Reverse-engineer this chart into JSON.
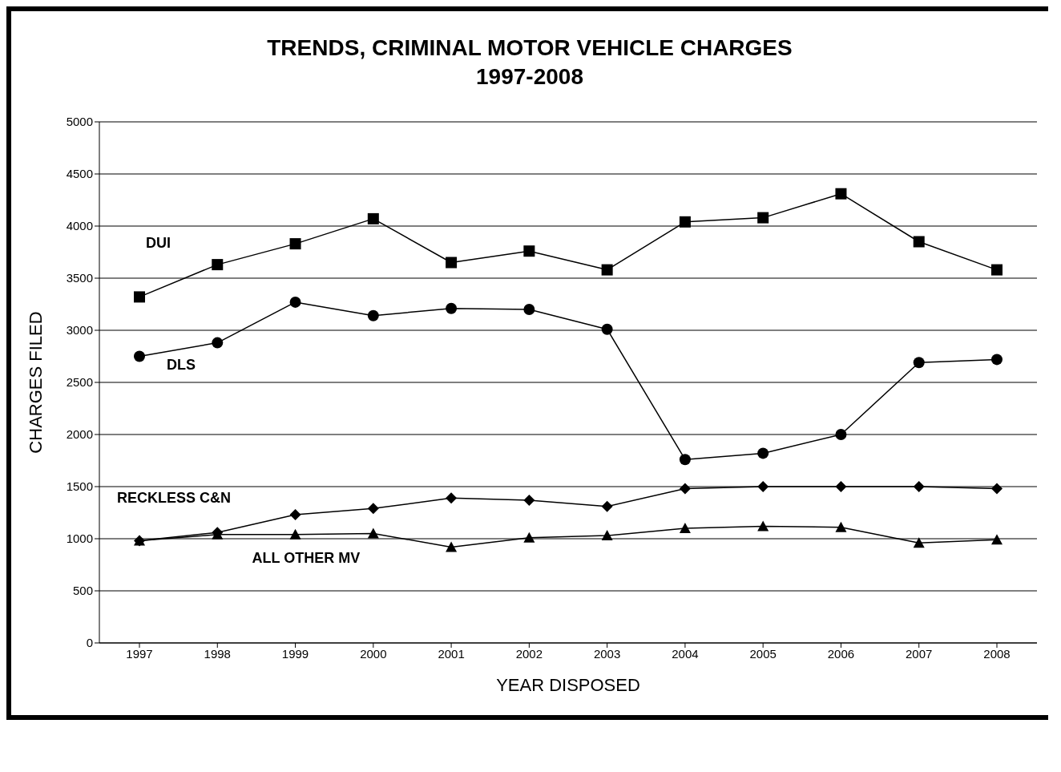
{
  "chart_data": {
    "type": "line",
    "title": "TRENDS, CRIMINAL MOTOR VEHICLE CHARGES",
    "subtitle": "1997-2008",
    "xlabel": "YEAR DISPOSED",
    "ylabel": "CHARGES FILED",
    "categories": [
      "1997",
      "1998",
      "1999",
      "2000",
      "2001",
      "2002",
      "2003",
      "2004",
      "2005",
      "2006",
      "2007",
      "2008"
    ],
    "ylim": [
      0,
      5000
    ],
    "yticks": [
      0,
      500,
      1000,
      1500,
      2000,
      2500,
      3000,
      3500,
      4000,
      4500,
      5000
    ],
    "grid": "y",
    "legend": false,
    "series": [
      {
        "name": "DUI",
        "color": "#000000",
        "marker": "square",
        "values": [
          3320,
          3630,
          3830,
          4070,
          3650,
          3760,
          3580,
          4040,
          4080,
          4310,
          3850,
          3580
        ]
      },
      {
        "name": "DLS",
        "color": "#000000",
        "marker": "circle",
        "values": [
          2750,
          2880,
          3270,
          3140,
          3210,
          3200,
          3010,
          1760,
          1820,
          2000,
          2690,
          2720
        ]
      },
      {
        "name": "RECKLESS C&N",
        "color": "#000000",
        "marker": "diamond",
        "values": [
          980,
          1060,
          1230,
          1290,
          1390,
          1370,
          1310,
          1480,
          1500,
          1500,
          1500,
          1480
        ]
      },
      {
        "name": "ALL OTHER MV",
        "color": "#000000",
        "marker": "triangle",
        "values": [
          980,
          1040,
          1040,
          1050,
          920,
          1010,
          1030,
          1100,
          1120,
          1110,
          960,
          990
        ]
      }
    ]
  }
}
